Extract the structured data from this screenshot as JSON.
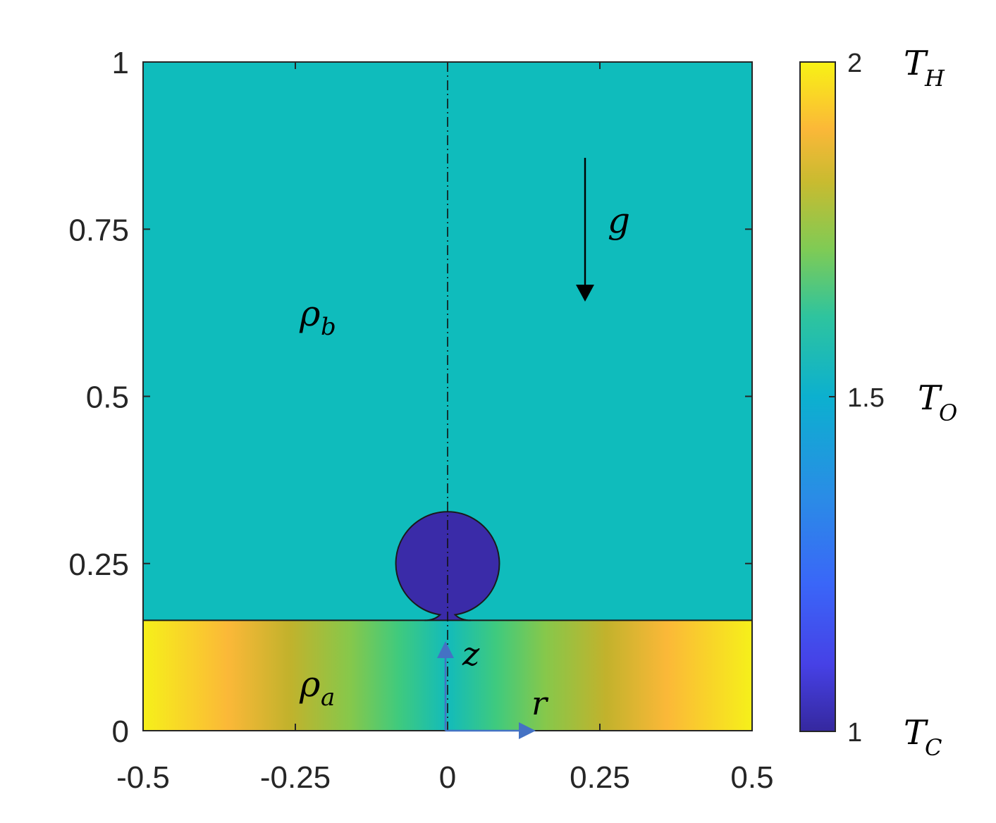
{
  "chart_data": {
    "type": "heatmap",
    "x_ticks": [
      "-0.5",
      "-0.25",
      "0",
      "0.25",
      "0.5"
    ],
    "x_tick_values": [
      -0.5,
      -0.25,
      0,
      0.25,
      0.5
    ],
    "y_ticks": [
      "0",
      "0.25",
      "0.5",
      "0.75",
      "1"
    ],
    "y_tick_values": [
      0,
      0.25,
      0.5,
      0.75,
      1
    ],
    "xlim": [
      -0.5,
      0.5
    ],
    "ylim": [
      0,
      1
    ],
    "grid": false,
    "colormap": "parula",
    "regions": [
      {
        "name": "upper fluid",
        "label": "ρ_b",
        "value": 1.5,
        "y_range": [
          0.165,
          1
        ]
      },
      {
        "name": "lower fluid",
        "label": "ρ_a",
        "value_range": [
          1.5,
          2
        ],
        "y_range": [
          0,
          0.165
        ],
        "gradient": "radial: 1.5 at r=0 to 2 at r=±0.5"
      },
      {
        "name": "bubble",
        "value": 1,
        "center": [
          0,
          0.25
        ],
        "radius": 0.085
      }
    ],
    "colorbar": {
      "range": [
        1,
        2
      ],
      "ticks": [
        {
          "value": 2,
          "label": "2",
          "symbol": "T",
          "subscript": "H"
        },
        {
          "value": 1.5,
          "label": "1.5",
          "symbol": "T",
          "subscript": "O"
        },
        {
          "value": 1,
          "label": "1",
          "symbol": "T",
          "subscript": "C"
        }
      ]
    },
    "annotations": {
      "gravity": "g",
      "rho_b": {
        "symbol": "ρ",
        "subscript": "b"
      },
      "rho_a": {
        "symbol": "ρ",
        "subscript": "a"
      },
      "axis_z": "z",
      "axis_r": "r"
    }
  },
  "colors": {
    "upper_fluid": "#0fbcbc",
    "bubble": "#3a2ba8",
    "arrow_blue": "#4472c4",
    "axis": "#262626"
  }
}
